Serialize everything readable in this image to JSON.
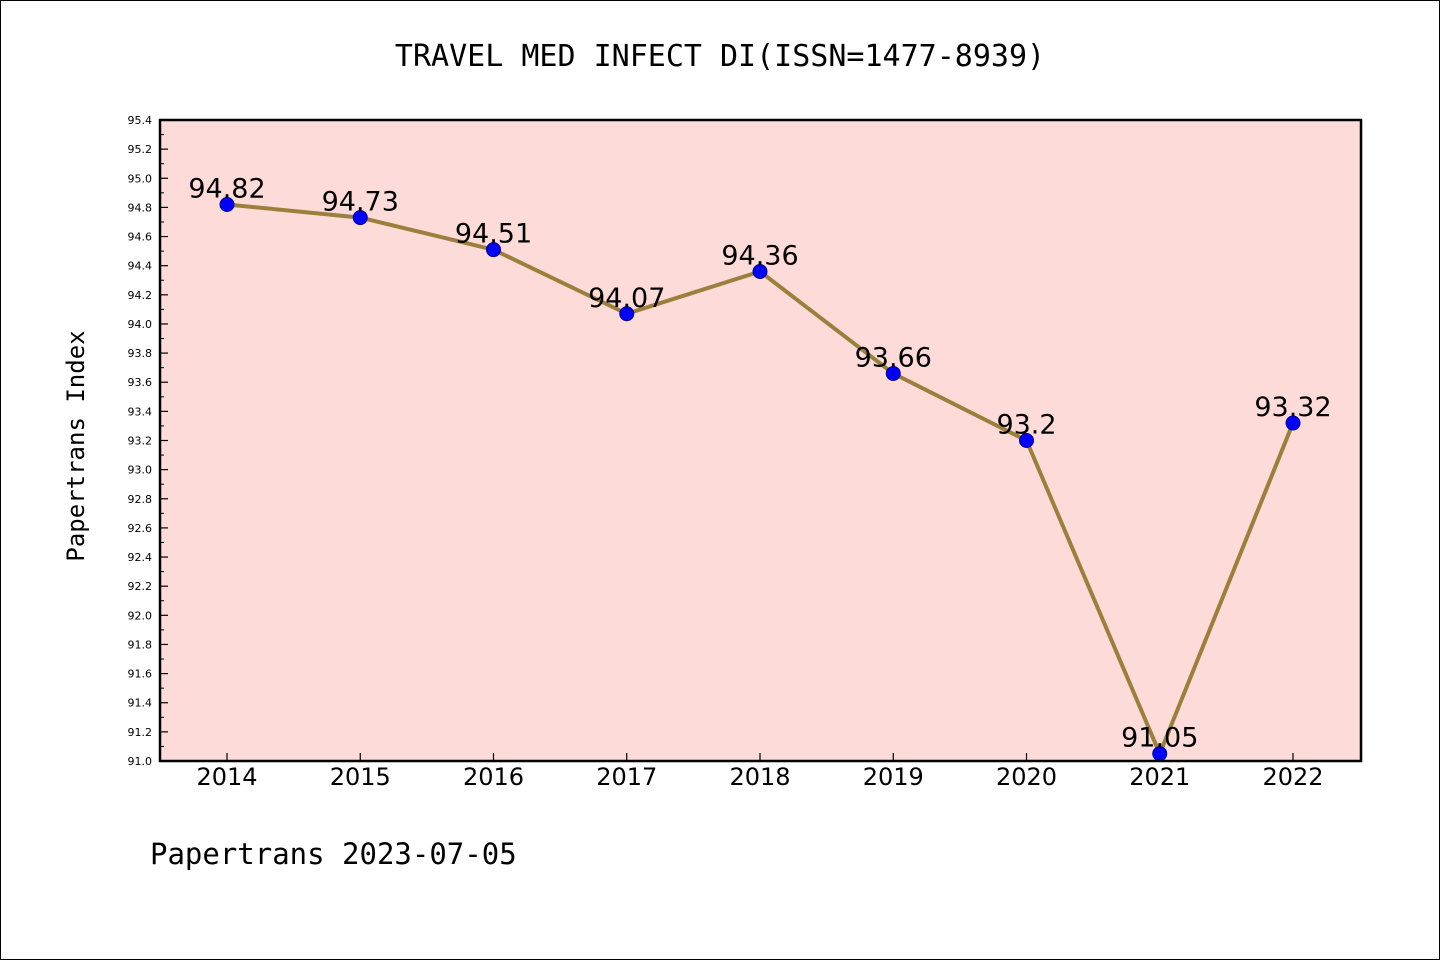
{
  "chart_data": {
    "type": "line",
    "title": "TRAVEL MED INFECT DI(ISSN=1477-8939)",
    "ylabel": "Papertrans Index",
    "xlabel": "",
    "categories": [
      "2014",
      "2015",
      "2016",
      "2017",
      "2018",
      "2019",
      "2020",
      "2021",
      "2022"
    ],
    "values": [
      94.82,
      94.73,
      94.51,
      94.07,
      94.36,
      93.66,
      93.2,
      91.05,
      93.32
    ],
    "data_labels": [
      "94.82",
      "94.73",
      "94.51",
      "94.07",
      "94.36",
      "93.66",
      "93.2",
      "91.05",
      "93.32"
    ],
    "ylim": [
      91.0,
      95.4
    ],
    "yticks": [
      "91.0",
      "91.2",
      "91.4",
      "91.6",
      "91.8",
      "92.0",
      "92.2",
      "92.4",
      "92.6",
      "92.8",
      "93.0",
      "93.2",
      "93.4",
      "93.6",
      "93.8",
      "94.0",
      "94.2",
      "94.4",
      "94.6",
      "94.8",
      "95.0",
      "95.2",
      "95.4"
    ],
    "grid": false,
    "colors": {
      "plot_background": "#fddbd9",
      "line": "#9b7f3a",
      "marker": "#0000ff"
    }
  },
  "footer": "Papertrans 2023-07-05"
}
